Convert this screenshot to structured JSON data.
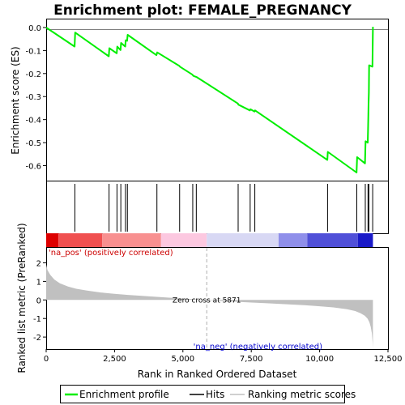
{
  "chart_data": {
    "type": "line",
    "title": "Enrichment plot: FEMALE_PREGNANCY",
    "panels": {
      "es": {
        "ylabel": "Enrichment score (ES)",
        "ylim": [
          -0.665,
          0.035
        ],
        "yticks": [
          0.0,
          -0.1,
          -0.2,
          -0.3,
          -0.4,
          -0.5,
          -0.6
        ],
        "ytick_labels": [
          "0.0",
          "-0.1",
          "-0.2",
          "-0.3",
          "-0.4",
          "-0.5",
          "-0.6"
        ],
        "series": {
          "name": "Enrichment profile",
          "color": "#00ee00",
          "x": [
            0,
            1040,
            1060,
            2290,
            2310,
            2580,
            2600,
            2720,
            2740,
            2890,
            2910,
            2960,
            2980,
            4030,
            4060,
            4870,
            4890,
            5350,
            5380,
            5470,
            5500,
            7010,
            7030,
            7450,
            7470,
            7620,
            7640,
            10280,
            10300,
            11350,
            11370,
            11660,
            11680,
            11760,
            11770,
            11780,
            11790,
            11800,
            11810,
            11930,
            11950
          ],
          "y": [
            0.0,
            -0.083,
            -0.022,
            -0.125,
            -0.09,
            -0.112,
            -0.083,
            -0.098,
            -0.067,
            -0.083,
            -0.055,
            -0.058,
            -0.032,
            -0.12,
            -0.108,
            -0.167,
            -0.17,
            -0.205,
            -0.21,
            -0.214,
            -0.215,
            -0.33,
            -0.335,
            -0.36,
            -0.355,
            -0.365,
            -0.36,
            -0.575,
            -0.54,
            -0.63,
            -0.563,
            -0.59,
            -0.494,
            -0.5,
            -0.44,
            -0.39,
            -0.332,
            -0.282,
            -0.164,
            -0.17,
            0.003
          ]
        }
      },
      "hits": {
        "name": "Hits",
        "color": "#000000",
        "positions": [
          1050,
          2300,
          2590,
          2730,
          2900,
          2970,
          4050,
          4880,
          5360,
          5490,
          7020,
          7460,
          7630,
          10290,
          11360,
          11670,
          11770,
          11800,
          11940
        ]
      },
      "colorbar": {
        "segments": [
          {
            "x0": 0,
            "x1": 450,
            "color": "#dd0000"
          },
          {
            "x0": 450,
            "x1": 2050,
            "color": "#f05050"
          },
          {
            "x0": 2050,
            "x1": 4200,
            "color": "#f89090"
          },
          {
            "x0": 4200,
            "x1": 5871,
            "color": "#fcc8e0"
          },
          {
            "x0": 5871,
            "x1": 8500,
            "color": "#d8d8f4"
          },
          {
            "x0": 8500,
            "x1": 9550,
            "color": "#8f8fea"
          },
          {
            "x0": 9550,
            "x1": 11400,
            "color": "#5050d8"
          },
          {
            "x0": 11400,
            "x1": 11950,
            "color": "#1a1ac8"
          }
        ]
      },
      "metric": {
        "name": "Ranking metric scores",
        "ylabel": "Ranked list metric (PreRanked)",
        "ylim": [
          -2.65,
          2.85
        ],
        "yticks": [
          2,
          1,
          0,
          -1,
          -2
        ],
        "ytick_labels": [
          "2",
          "1",
          "0",
          "-1",
          "-2"
        ],
        "fill_color": "#c0c0c0",
        "x": [
          0,
          50,
          150,
          300,
          500,
          800,
          1100,
          1500,
          2000,
          2500,
          3000,
          3500,
          4000,
          4500,
          5000,
          5500,
          5871,
          6500,
          7000,
          7500,
          8000,
          8500,
          9000,
          9500,
          10000,
          10500,
          11000,
          11300,
          11500,
          11650,
          11750,
          11820,
          11870,
          11910,
          11940,
          11950
        ],
        "y": [
          1.9,
          1.6,
          1.35,
          1.1,
          0.9,
          0.72,
          0.6,
          0.5,
          0.4,
          0.33,
          0.27,
          0.22,
          0.17,
          0.12,
          0.08,
          0.03,
          0.0,
          -0.06,
          -0.1,
          -0.14,
          -0.17,
          -0.21,
          -0.25,
          -0.29,
          -0.34,
          -0.4,
          -0.5,
          -0.6,
          -0.72,
          -0.85,
          -1.0,
          -1.2,
          -1.45,
          -1.8,
          -2.3,
          -2.6
        ]
      }
    },
    "xlabel": "Rank in Ranked Ordered Dataset",
    "xlim": [
      0,
      12500
    ],
    "xticks": [
      0,
      2500,
      5000,
      7500,
      10000,
      12500
    ],
    "xtick_labels": [
      "0",
      "2,500",
      "5,000",
      "7,500",
      "10,000",
      "12,500"
    ],
    "zero_cross": 5871,
    "annotations": {
      "zero_cross": "Zero cross at 5871",
      "pos": "'na_pos' (positively correlated)",
      "neg": "'na_neg' (negatively correlated)"
    },
    "legend": {
      "placement": "bottom",
      "entries": [
        {
          "label": "Enrichment profile",
          "color": "#00ee00"
        },
        {
          "label": "Hits",
          "color": "#000000"
        },
        {
          "label": "Ranking metric scores",
          "color": "#c0c0c0"
        }
      ]
    }
  }
}
